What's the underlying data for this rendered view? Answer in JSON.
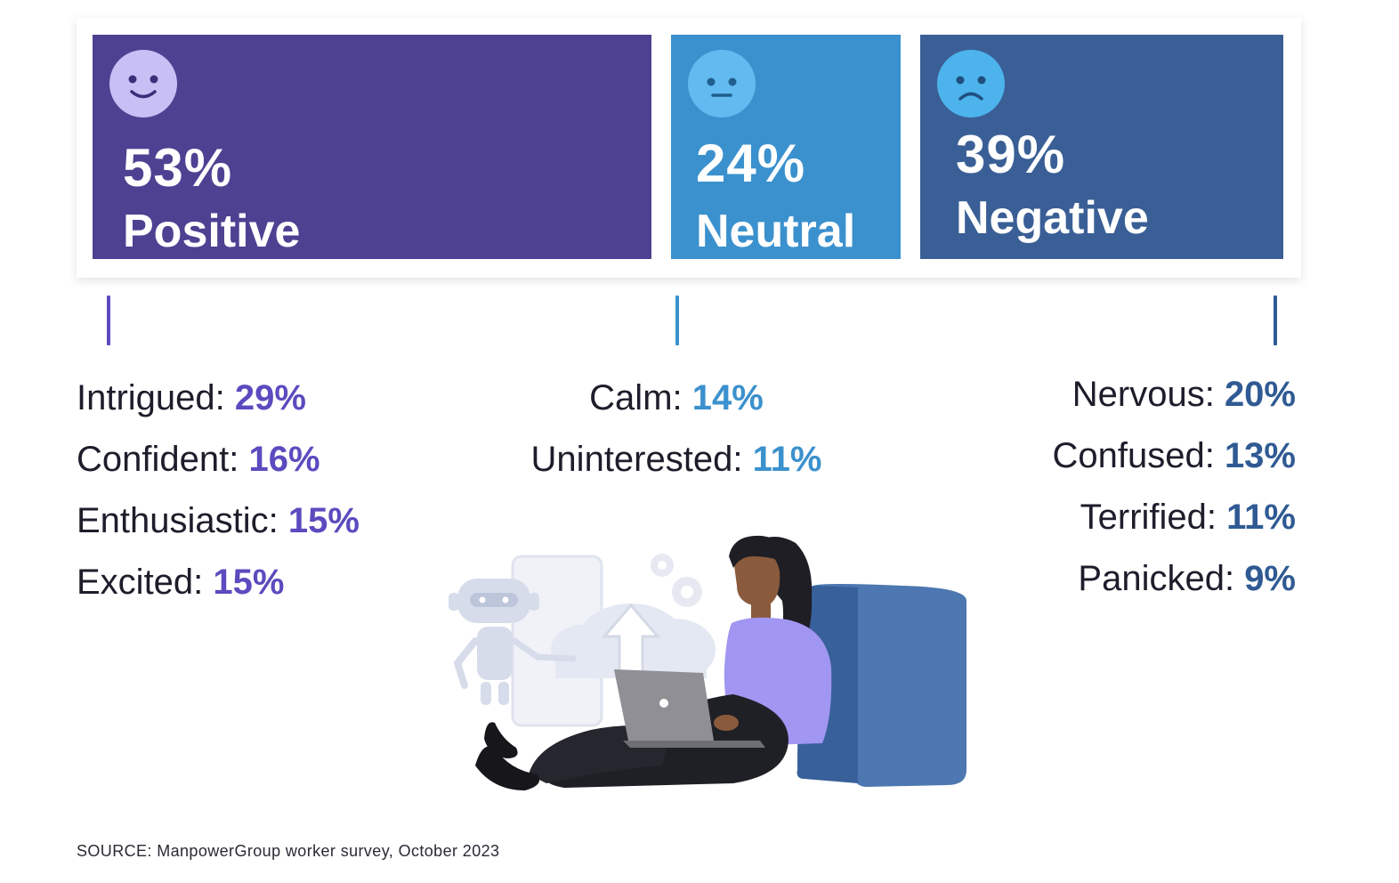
{
  "chart_data": {
    "type": "bar",
    "title": "",
    "categories": [
      "Positive",
      "Neutral",
      "Negative"
    ],
    "values": [
      53,
      24,
      39
    ],
    "value_labels": [
      "53%",
      "24%",
      "39%"
    ],
    "colors": [
      "#4e4192",
      "#3b91cd",
      "#3a5f96"
    ],
    "breakdown": {
      "positive": [
        {
          "label": "Intrigued:",
          "value": 29,
          "display": "29%"
        },
        {
          "label": "Confident:",
          "value": 16,
          "display": "16%"
        },
        {
          "label": "Enthusiastic:",
          "value": 15,
          "display": "15%"
        },
        {
          "label": "Excited:",
          "value": 15,
          "display": "15%"
        }
      ],
      "neutral": [
        {
          "label": "Calm:",
          "value": 14,
          "display": "14%"
        },
        {
          "label": "Uninterested:",
          "value": 11,
          "display": "11%"
        }
      ],
      "negative": [
        {
          "label": "Nervous:",
          "value": 20,
          "display": "20%"
        },
        {
          "label": "Confused:",
          "value": 13,
          "display": "13%"
        },
        {
          "label": "Terrified:",
          "value": 11,
          "display": "11%"
        },
        {
          "label": "Panicked:",
          "value": 9,
          "display": "9%"
        }
      ]
    }
  },
  "accent_colors": {
    "positive_text": "#5b4bbf",
    "neutral_text": "#3b91cd",
    "negative_text": "#2f5a93",
    "positive_face": "#c8c0f5",
    "neutral_face": "#62baf0",
    "negative_face": "#4db3ec"
  },
  "icons": {
    "positive": "smiling-face-icon",
    "neutral": "neutral-face-icon",
    "negative": "sad-face-icon"
  },
  "source": "SOURCE: ManpowerGroup worker survey, October 2023"
}
